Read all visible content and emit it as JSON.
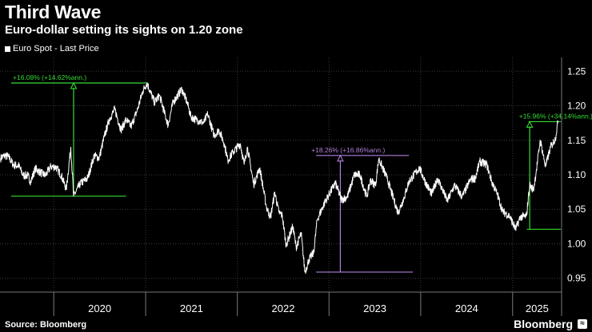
{
  "header": {
    "title": "Third Wave",
    "subtitle": "Euro-dollar setting its sights on 1.20 zone"
  },
  "footer": {
    "source": "Source: Bloomberg",
    "brand": "Bloomberg"
  },
  "colors": {
    "background": "#000000",
    "line": "#ffffff",
    "green_annotation": "#33dd33",
    "purple_annotation": "#b07fd8",
    "grid": "#3a3a3a"
  },
  "chart_data": {
    "type": "line",
    "title": "Third Wave",
    "subtitle": "Euro-dollar setting its sights on 1.20 zone",
    "legend": [
      "Euro Spot - Last Price"
    ],
    "legend_position": "top-left",
    "grid": true,
    "x_tick_labels": [
      "2020",
      "2021",
      "2022",
      "2023",
      "2024",
      "2025"
    ],
    "y_ticks": [
      0.95,
      1.0,
      1.05,
      1.1,
      1.15,
      1.2,
      1.25
    ],
    "ylim": [
      0.93,
      1.27
    ],
    "xlim": [
      "2019-06-01",
      "2025-07-15"
    ],
    "series": [
      {
        "name": "Euro Spot - Last Price",
        "x": [
          "2019-06-03",
          "2019-06-20",
          "2019-07-05",
          "2019-07-25",
          "2019-08-15",
          "2019-09-01",
          "2019-09-20",
          "2019-10-01",
          "2019-10-20",
          "2019-11-10",
          "2019-11-29",
          "2019-12-20",
          "2020-01-10",
          "2020-01-31",
          "2020-02-20",
          "2020-03-09",
          "2020-03-20",
          "2020-04-15",
          "2020-05-15",
          "2020-06-10",
          "2020-06-30",
          "2020-07-20",
          "2020-08-10",
          "2020-08-31",
          "2020-09-25",
          "2020-10-15",
          "2020-11-04",
          "2020-11-30",
          "2020-12-20",
          "2021-01-06",
          "2021-02-05",
          "2021-02-25",
          "2021-03-31",
          "2021-04-20",
          "2021-05-25",
          "2021-06-15",
          "2021-06-30",
          "2021-07-20",
          "2021-08-20",
          "2021-09-05",
          "2021-09-30",
          "2021-10-20",
          "2021-11-10",
          "2021-11-24",
          "2021-12-15",
          "2022-01-13",
          "2022-01-28",
          "2022-02-10",
          "2022-03-07",
          "2022-03-31",
          "2022-04-27",
          "2022-05-13",
          "2022-05-30",
          "2022-06-15",
          "2022-06-29",
          "2022-07-14",
          "2022-08-10",
          "2022-08-23",
          "2022-09-12",
          "2022-09-27",
          "2022-10-14",
          "2022-11-01",
          "2022-11-15",
          "2022-12-15",
          "2023-01-26",
          "2023-02-20",
          "2023-03-15",
          "2023-04-12",
          "2023-05-04",
          "2023-05-31",
          "2023-06-15",
          "2023-07-05",
          "2023-07-18",
          "2023-08-20",
          "2023-09-15",
          "2023-10-03",
          "2023-10-25",
          "2023-11-15",
          "2023-12-27",
          "2024-01-20",
          "2024-02-14",
          "2024-03-08",
          "2024-04-16",
          "2024-05-15",
          "2024-06-14",
          "2024-07-17",
          "2024-08-05",
          "2024-08-23",
          "2024-09-20",
          "2024-10-10",
          "2024-11-01",
          "2024-11-22",
          "2024-12-20",
          "2025-01-13",
          "2025-02-01",
          "2025-02-25",
          "2025-03-10",
          "2025-03-25",
          "2025-04-05",
          "2025-04-21",
          "2025-05-12",
          "2025-06-01",
          "2025-06-20",
          "2025-07-01"
        ],
        "y": [
          1.124,
          1.128,
          1.126,
          1.114,
          1.113,
          1.099,
          1.099,
          1.09,
          1.109,
          1.103,
          1.099,
          1.112,
          1.111,
          1.099,
          1.079,
          1.14,
          1.069,
          1.087,
          1.095,
          1.128,
          1.124,
          1.155,
          1.181,
          1.195,
          1.165,
          1.18,
          1.17,
          1.195,
          1.221,
          1.233,
          1.205,
          1.215,
          1.172,
          1.205,
          1.224,
          1.205,
          1.184,
          1.18,
          1.175,
          1.188,
          1.157,
          1.165,
          1.145,
          1.121,
          1.133,
          1.145,
          1.115,
          1.14,
          1.086,
          1.11,
          1.053,
          1.038,
          1.075,
          1.046,
          1.041,
          0.998,
          1.025,
          0.995,
          1.015,
          0.959,
          0.978,
          0.987,
          1.035,
          1.06,
          1.088,
          1.064,
          1.068,
          1.1,
          1.1,
          1.068,
          1.092,
          1.085,
          1.123,
          1.095,
          1.065,
          1.045,
          1.065,
          1.09,
          1.11,
          1.089,
          1.072,
          1.095,
          1.062,
          1.085,
          1.068,
          1.093,
          1.095,
          1.119,
          1.115,
          1.09,
          1.072,
          1.047,
          1.04,
          1.021,
          1.039,
          1.04,
          1.085,
          1.078,
          1.105,
          1.15,
          1.112,
          1.14,
          1.152,
          1.178
        ]
      }
    ],
    "annotations": [
      {
        "label": "+16.08% (+14.62%ann.)",
        "color": "green",
        "from": {
          "x": "2020-03-20",
          "y": 1.069
        },
        "to": {
          "x": "2021-01-06",
          "y": 1.233
        },
        "horizontal_lines": [
          {
            "y": 1.233,
            "x_start": "2019-06-01",
            "x_end": "2021-01-06"
          },
          {
            "y": 1.069,
            "x_start": "2019-06-01",
            "x_end": "2020-10-15"
          }
        ],
        "arrow_x": "2020-03-20"
      },
      {
        "label": "+18.26% (+16.86%ann.)",
        "color": "purple",
        "from": {
          "x": "2022-09-27",
          "y": 0.959
        },
        "to": {
          "x": "2023-07-18",
          "y": 1.123
        },
        "horizontal_lines": [
          {
            "y": 1.128,
            "x_start": "2022-09-27",
            "x_end": "2023-11-15"
          },
          {
            "y": 0.959,
            "x_start": "2022-09-27",
            "x_end": "2023-12-01"
          }
        ],
        "arrow_x": "2023-02-15"
      },
      {
        "label": "+15.96% (+34.14%ann.)",
        "color": "green",
        "from": {
          "x": "2025-01-13",
          "y": 1.021
        },
        "to": {
          "x": "2025-07-01",
          "y": 1.178
        },
        "horizontal_lines": [
          {
            "y": 1.177,
            "x_start": "2025-01-20",
            "x_end": "2025-07-12"
          },
          {
            "y": 1.021,
            "x_start": "2025-01-13",
            "x_end": "2025-07-12"
          }
        ],
        "arrow_x": "2025-03-10"
      }
    ]
  }
}
